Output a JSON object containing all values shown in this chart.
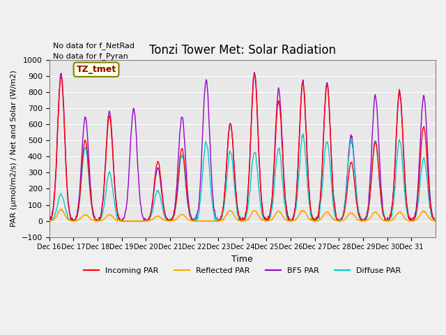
{
  "title": "Tonzi Tower Met: Solar Radiation",
  "ylabel": "PAR (μmol/m2/s) / Net and Solar (W/m2)",
  "xlabel": "Time",
  "ylim": [
    -100,
    1000
  ],
  "bg_color": "#e8e8e8",
  "fig_color": "#f0f0f0",
  "note1": "No data for f_NetRad",
  "note2": "No data for f_Pyran",
  "legend_label": "TZ_tmet",
  "series_labels": [
    "Incoming PAR",
    "Reflected PAR",
    "BF5 PAR",
    "Diffuse PAR"
  ],
  "series_colors": [
    "#ff0000",
    "#ffa500",
    "#9900cc",
    "#00cccc"
  ],
  "xtick_labels": [
    "Dec 16",
    "Dec 17",
    "Dec 18",
    "Dec 19",
    "Dec 20",
    "Dec 21",
    "Dec 22",
    "Dec 23",
    "Dec 24",
    "Dec 25",
    "Dec 26",
    "Dec 27",
    "Dec 28",
    "Dec 29",
    "Dec 30",
    "Dec 31"
  ],
  "num_days": 16,
  "pts_per_day": 48,
  "peaks": {
    "incoming": [
      900,
      500,
      650,
      null,
      370,
      450,
      null,
      605,
      910,
      750,
      855,
      845,
      365,
      490,
      800,
      585
    ],
    "reflected": [
      70,
      40,
      40,
      null,
      30,
      40,
      null,
      65,
      65,
      60,
      65,
      55,
      50,
      55,
      55,
      60
    ],
    "bf5": [
      910,
      640,
      680,
      695,
      330,
      650,
      875,
      605,
      915,
      815,
      860,
      850,
      530,
      775,
      800,
      775
    ],
    "diffuse": [
      165,
      455,
      300,
      null,
      190,
      410,
      485,
      430,
      430,
      450,
      530,
      500,
      500,
      500,
      500,
      390
    ]
  }
}
